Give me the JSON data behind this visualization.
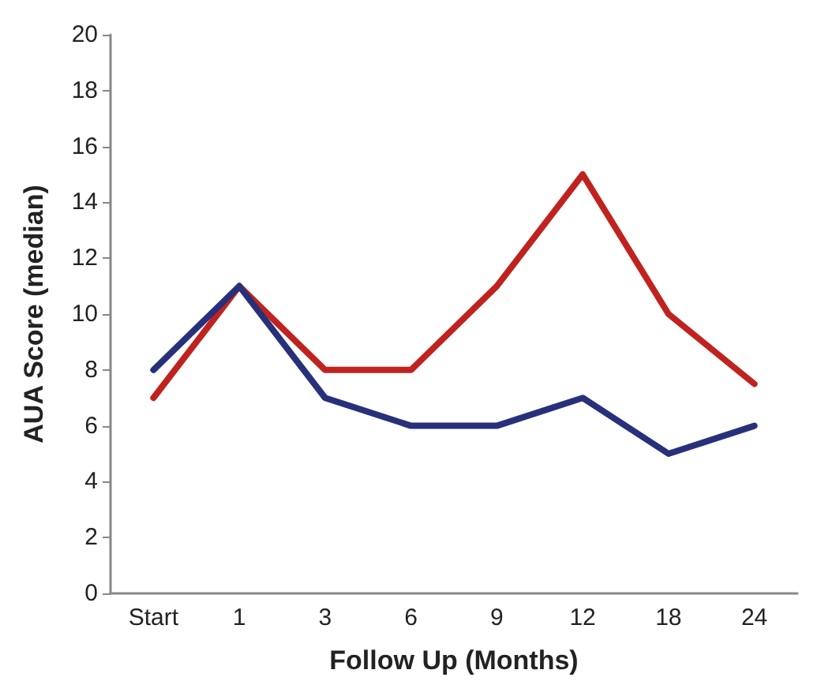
{
  "chart_data": {
    "type": "line",
    "xlabel": "Follow Up (Months)",
    "ylabel": "AUA Score (median)",
    "categories": [
      "Start",
      "1",
      "3",
      "6",
      "9",
      "12",
      "18",
      "24"
    ],
    "series": [
      {
        "color": "#c0231f",
        "values": [
          7,
          11,
          8,
          8,
          11,
          15,
          10,
          7.5
        ]
      },
      {
        "color": "#27307a",
        "values": [
          8,
          11,
          7,
          6,
          6,
          7,
          5,
          6
        ]
      }
    ],
    "ylim": [
      0,
      20
    ],
    "yticks": [
      0,
      2,
      4,
      6,
      8,
      10,
      12,
      14,
      16,
      18,
      20
    ]
  }
}
